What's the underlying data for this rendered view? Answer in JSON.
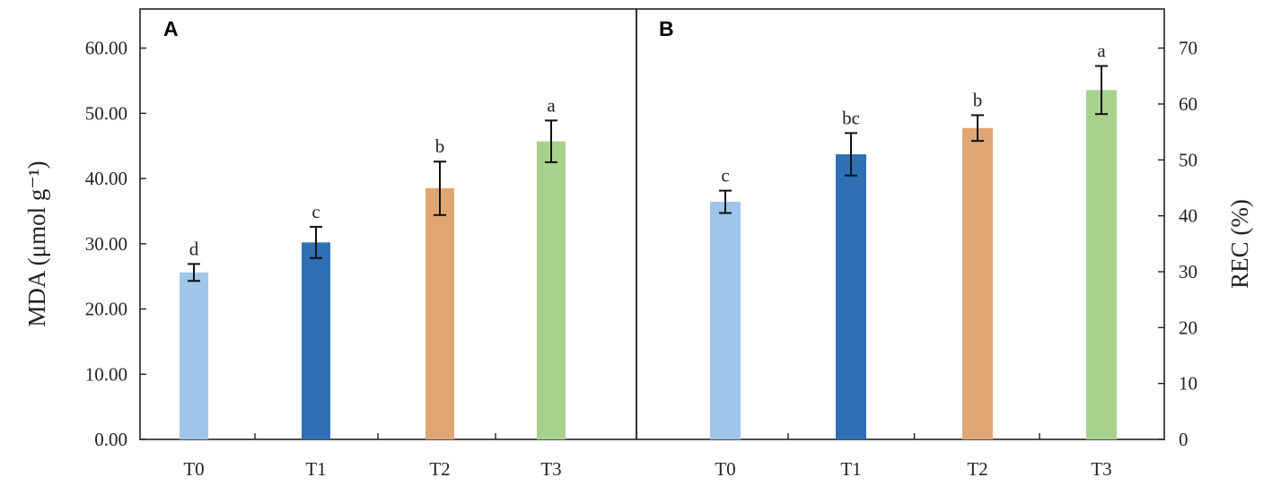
{
  "chart_data": [
    {
      "type": "bar",
      "panel_label": "A",
      "categories": [
        "T0",
        "T1",
        "T2",
        "T3"
      ],
      "values": [
        25.6,
        30.2,
        38.5,
        45.7
      ],
      "errors": [
        1.3,
        2.4,
        4.1,
        3.2
      ],
      "significance": [
        "d",
        "c",
        "b",
        "a"
      ],
      "colors": [
        "#9fc5e8",
        "#2f6fb5",
        "#dfa673",
        "#a9d18e"
      ],
      "ylabel": "MDA (μmol g⁻¹)",
      "yaxis_side": "left",
      "ylim": [
        0,
        66
      ],
      "yticks": [
        "0.00",
        "10.00",
        "20.00",
        "30.00",
        "40.00",
        "50.00",
        "60.00"
      ]
    },
    {
      "type": "bar",
      "panel_label": "B",
      "categories": [
        "T0",
        "T1",
        "T2",
        "T3"
      ],
      "values": [
        42.5,
        51.0,
        55.7,
        62.5
      ],
      "errors": [
        2.0,
        3.8,
        2.3,
        4.3
      ],
      "significance": [
        "c",
        "bc",
        "b",
        "a"
      ],
      "colors": [
        "#9fc5e8",
        "#2f6fb5",
        "#dfa673",
        "#a9d18e"
      ],
      "ylabel": "REC (%)",
      "yaxis_side": "right",
      "ylim": [
        0,
        77
      ],
      "yticks": [
        "0",
        "10",
        "20",
        "30",
        "40",
        "50",
        "60",
        "70"
      ]
    }
  ]
}
